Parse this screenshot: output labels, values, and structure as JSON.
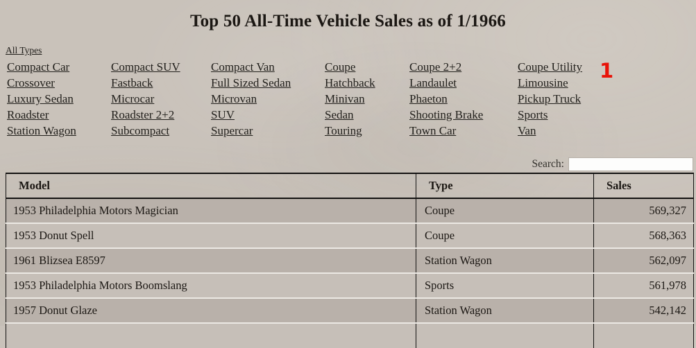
{
  "title": "Top 50 All-Time Vehicle Sales as of 1/1966",
  "badge": "1",
  "filters": {
    "all_label": "All Types",
    "types": [
      "Compact Car",
      "Crossover",
      "Luxury Sedan",
      "Roadster",
      "Station Wagon",
      "Compact SUV",
      "Fastback",
      "Microcar",
      "Roadster 2+2",
      "Subcompact",
      "Compact Van",
      "Full Sized Sedan",
      "Microvan",
      "SUV",
      "Supercar",
      "Coupe",
      "Hatchback",
      "Minivan",
      "Sedan",
      "Touring",
      "Coupe 2+2",
      "Landaulet",
      "Phaeton",
      "Shooting Brake",
      "Town Car",
      "Coupe Utility",
      "Limousine",
      "Pickup Truck",
      "Sports",
      "Van"
    ]
  },
  "search": {
    "label": "Search:",
    "value": "",
    "placeholder": ""
  },
  "table": {
    "columns": [
      "Model",
      "Type",
      "Sales"
    ],
    "rows": [
      {
        "model": "1953 Philadelphia Motors Magician",
        "type": "Coupe",
        "sales": "569,327"
      },
      {
        "model": "1953 Donut Spell",
        "type": "Coupe",
        "sales": "568,363"
      },
      {
        "model": "1961 Blizsea E8597",
        "type": "Station Wagon",
        "sales": "562,097"
      },
      {
        "model": "1953 Philadelphia Motors Boomslang",
        "type": "Sports",
        "sales": "561,978"
      },
      {
        "model": "1957 Donut Glaze",
        "type": "Station Wagon",
        "sales": "542,142"
      }
    ],
    "partial_row_visible": true
  },
  "colors": {
    "background": "#c9c2ba",
    "row_odd": "#b9b1aa",
    "row_even": "#c6bfb8",
    "table_border": "#121110",
    "badge_red": "#e81309",
    "text": "#1b1713"
  }
}
